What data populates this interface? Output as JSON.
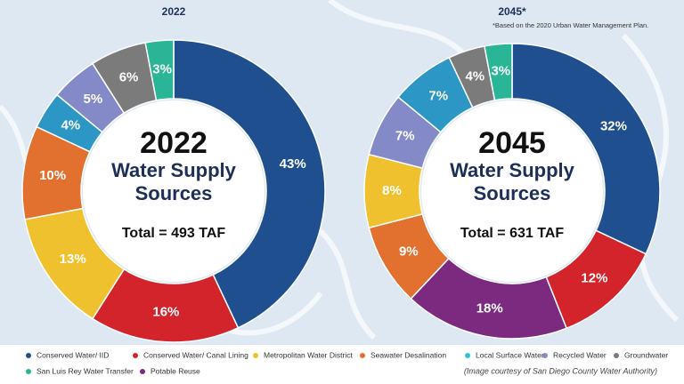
{
  "chart_data": [
    {
      "type": "donut",
      "title": "2022",
      "center_title": "2022",
      "heading_lines": [
        "Water Supply",
        "Sources"
      ],
      "total": "Total = 493 TAF",
      "values": [
        43,
        16,
        13,
        10,
        4,
        5,
        6,
        3
      ],
      "value_labels": [
        "43%",
        "16%",
        "13%",
        "10%",
        "4%",
        "5%",
        "6%",
        "3%"
      ],
      "colors": [
        "#1f4f8f",
        "#d3232b",
        "#f0c12e",
        "#e2702e",
        "#2c97c4",
        "#8489c8",
        "#7b7b7b",
        "#2bb597"
      ]
    },
    {
      "type": "donut",
      "title": "2045*",
      "center_title": "2045",
      "heading_lines": [
        "Water Supply",
        "Sources"
      ],
      "total": "Total = 631 TAF",
      "values": [
        32,
        12,
        18,
        9,
        8,
        7,
        7,
        4,
        3
      ],
      "value_labels": [
        "32%",
        "12%",
        "18%",
        "9%",
        "8%",
        "7%",
        "7%",
        "4%",
        "3%"
      ],
      "colors": [
        "#1f4f8f",
        "#d3232b",
        "#7b2a7f",
        "#e2702e",
        "#f0c12e",
        "#8489c8",
        "#2c97c4",
        "#7b7b7b",
        "#2bb597"
      ]
    }
  ],
  "footnote": "*Based on the 2020 Urban Water Management Plan.",
  "legend": [
    {
      "name": "Conserved Water/ IID",
      "color": "#1f4f8f"
    },
    {
      "name": "Conserved Water/ Canal Lining",
      "color": "#d3232b"
    },
    {
      "name": "Metropolitan Water District",
      "color": "#f0c12e"
    },
    {
      "name": "Seawater Desalination",
      "color": "#e2702e"
    },
    {
      "name": "Local Surface Water",
      "color": "#2fc3d6"
    },
    {
      "name": "Recycled Water",
      "color": "#8489c8"
    },
    {
      "name": "Groundwater",
      "color": "#7b7b7b"
    },
    {
      "name": "San Luis Rey Water Transfer",
      "color": "#2bb597"
    },
    {
      "name": "Potable Reuse",
      "color": "#7b2a7f"
    }
  ],
  "credit": "(Image courtesy of San Diego County Water Authority)"
}
